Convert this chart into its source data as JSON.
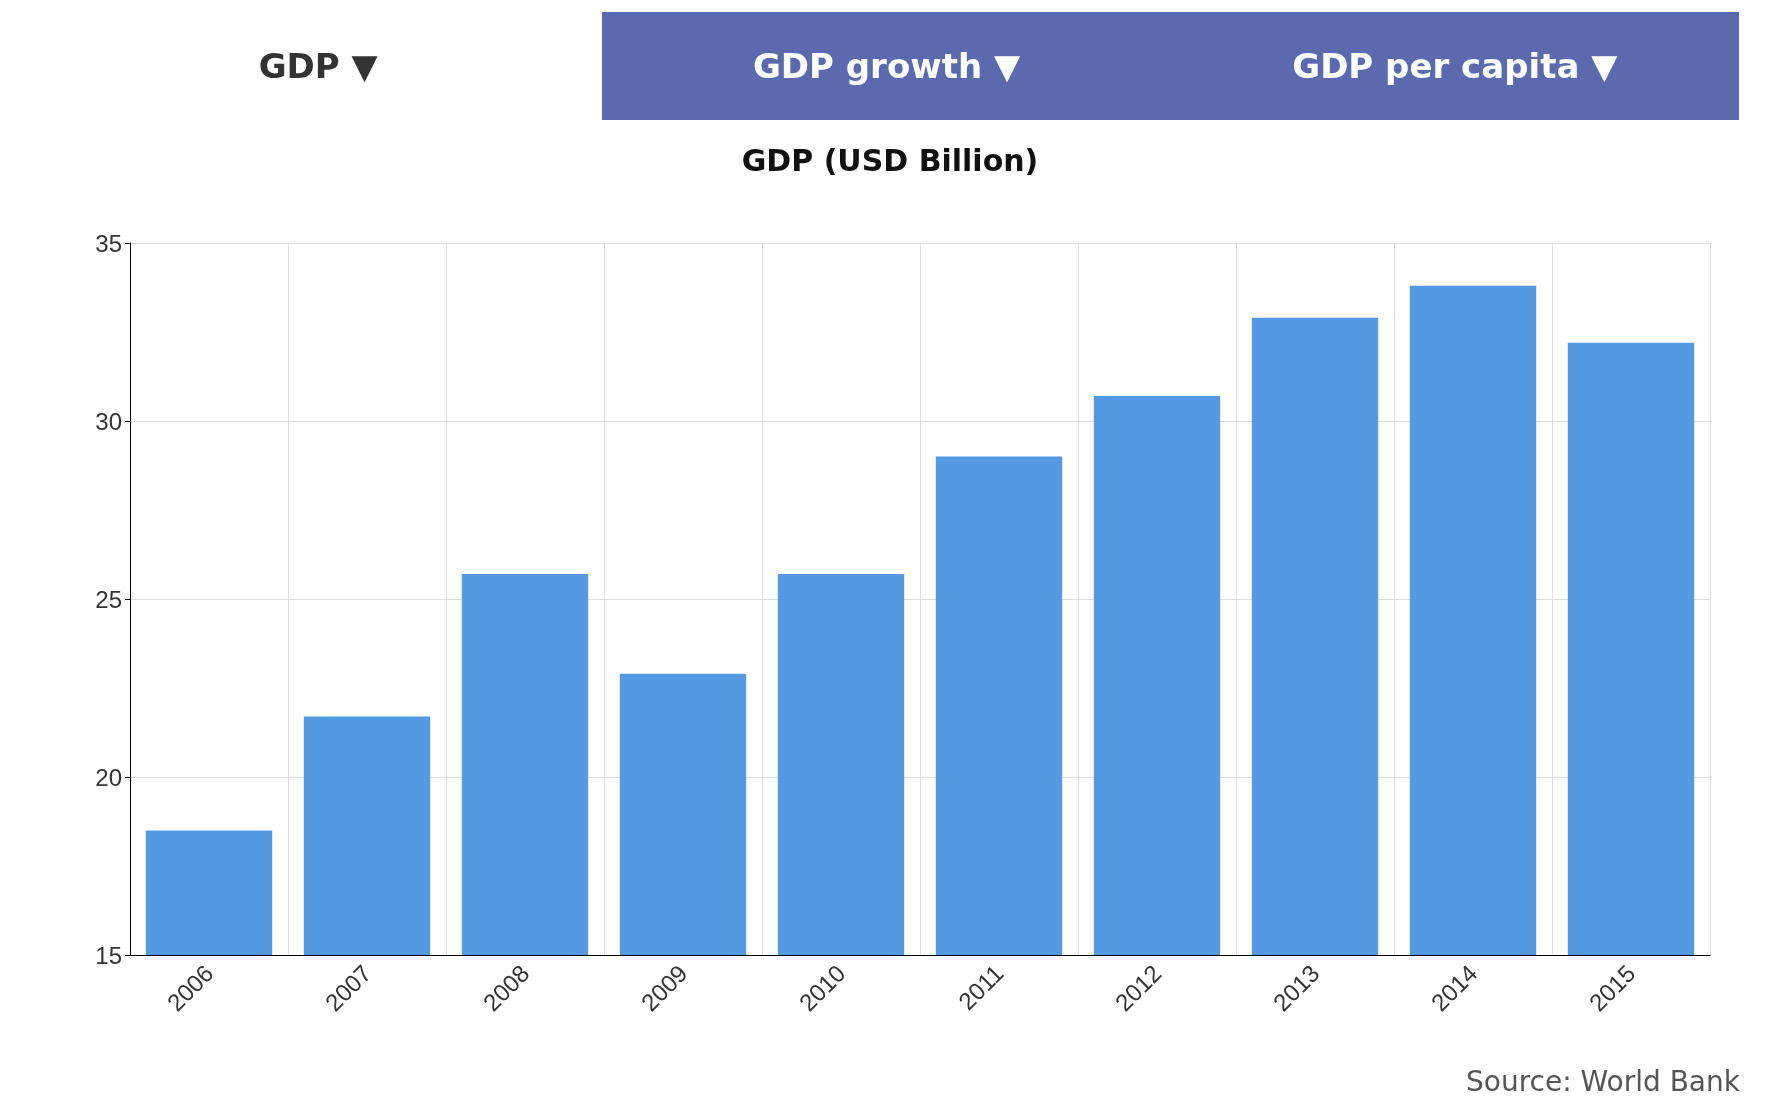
{
  "chart_data": {
    "type": "bar",
    "title": "GDP (USD Billion)",
    "categories": [
      "2006",
      "2007",
      "2008",
      "2009",
      "2010",
      "2011",
      "2012",
      "2013",
      "2014",
      "2015"
    ],
    "values": [
      18.5,
      21.7,
      25.7,
      22.9,
      25.7,
      29.0,
      30.7,
      32.9,
      33.8,
      32.2
    ],
    "color": "#5599e3",
    "ylim": [
      15,
      35
    ],
    "yticks": [
      15,
      20,
      25,
      30,
      35
    ],
    "grid": true,
    "annotations": [
      "GDP ▼",
      "GDP growth ▼",
      "GDP per capita ▼",
      "Source: World Bank"
    ]
  }
}
